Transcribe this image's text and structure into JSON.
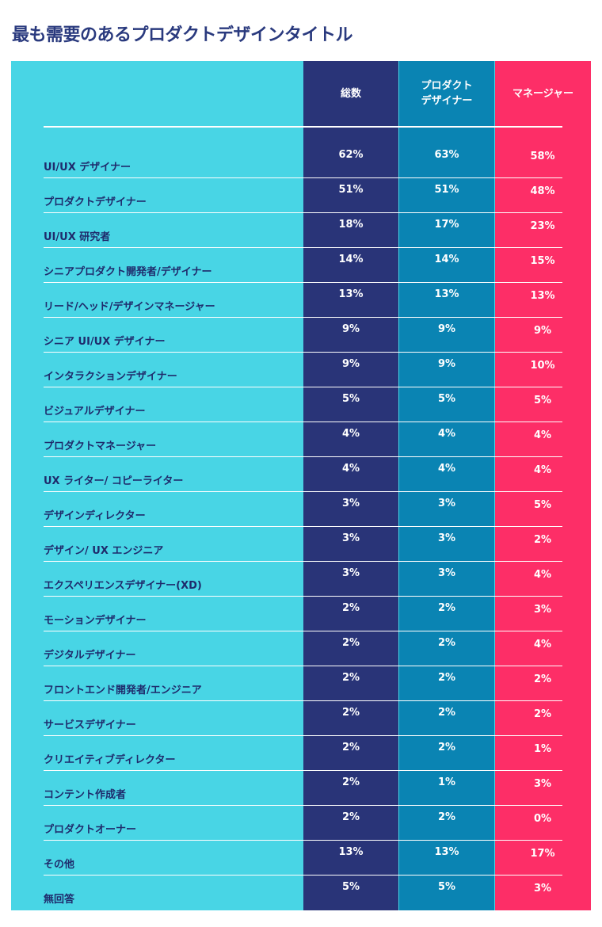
{
  "title": "最も需要のあるプロダクトデザインタイトル",
  "colors": {
    "panel": "#48d5e5",
    "total": "#293478",
    "designer": "#0a84b3",
    "manager": "#fd2e67",
    "label_text": "#1f2b6c",
    "title_text": "#2a3a7e"
  },
  "columns": [
    {
      "key": "total",
      "lines": [
        "総数"
      ]
    },
    {
      "key": "designer",
      "lines": [
        "プロダクト",
        "デザイナー"
      ]
    },
    {
      "key": "manager",
      "lines": [
        "マネージャー"
      ]
    }
  ],
  "chart_data": {
    "type": "table",
    "title": "最も需要のあるプロダクトデザインタイトル",
    "column_headers": [
      "総数",
      "プロダクト デザイナー",
      "マネージャー"
    ],
    "rows": [
      {
        "label": "UI/UX デザイナー",
        "values": [
          "62%",
          "63%",
          "58%"
        ]
      },
      {
        "label": "プロダクトデザイナー",
        "values": [
          "51%",
          "51%",
          "48%"
        ]
      },
      {
        "label": "UI/UX 研究者",
        "values": [
          "18%",
          "17%",
          "23%"
        ]
      },
      {
        "label": "シニアプロダクト開発者/デザイナー",
        "values": [
          "14%",
          "14%",
          "15%"
        ]
      },
      {
        "label": "リード/ヘッド/デザインマネージャー",
        "values": [
          "13%",
          "13%",
          "13%"
        ]
      },
      {
        "label": "シニア UI/UX デザイナー",
        "values": [
          "9%",
          "9%",
          "9%"
        ]
      },
      {
        "label": "インタラクションデザイナー",
        "values": [
          "9%",
          "9%",
          "10%"
        ]
      },
      {
        "label": "ビジュアルデザイナー",
        "values": [
          "5%",
          "5%",
          "5%"
        ]
      },
      {
        "label": "プロダクトマネージャー",
        "values": [
          "4%",
          "4%",
          "4%"
        ]
      },
      {
        "label": "UX ライター/ コピーライター",
        "values": [
          "4%",
          "4%",
          "4%"
        ]
      },
      {
        "label": "デザインディレクター",
        "values": [
          "3%",
          "3%",
          "5%"
        ]
      },
      {
        "label": "デザイン/ UX エンジニア",
        "values": [
          "3%",
          "3%",
          "2%"
        ]
      },
      {
        "label": "エクスペリエンスデザイナー(XD)",
        "values": [
          "3%",
          "3%",
          "4%"
        ]
      },
      {
        "label": "モーションデザイナー",
        "values": [
          "2%",
          "2%",
          "3%"
        ]
      },
      {
        "label": "デジタルデザイナー",
        "values": [
          "2%",
          "2%",
          "4%"
        ]
      },
      {
        "label": "フロントエンド開発者/エンジニア",
        "values": [
          "2%",
          "2%",
          "2%"
        ]
      },
      {
        "label": "サービスデザイナー",
        "values": [
          "2%",
          "2%",
          "2%"
        ]
      },
      {
        "label": "クリエイティブディレクター",
        "values": [
          "2%",
          "2%",
          "1%"
        ]
      },
      {
        "label": "コンテント作成者",
        "values": [
          "2%",
          "1%",
          "3%"
        ]
      },
      {
        "label": "プロダクトオーナー",
        "values": [
          "2%",
          "2%",
          "0%"
        ]
      },
      {
        "label": "その他",
        "values": [
          "13%",
          "13%",
          "17%"
        ]
      },
      {
        "label": "無回答",
        "values": [
          "5%",
          "5%",
          "3%"
        ]
      }
    ]
  }
}
